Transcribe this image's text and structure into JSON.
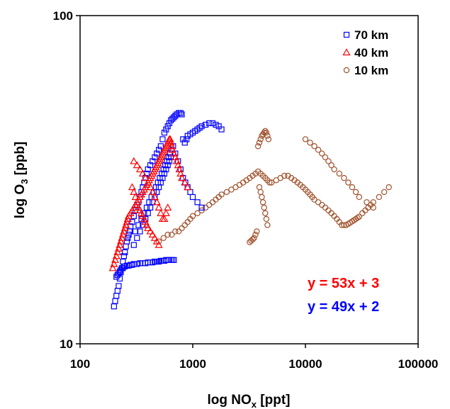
{
  "chart_data": {
    "type": "scatter",
    "title": "",
    "xlabel": "log NO",
    "xlabel_sub": "x",
    "xlabel_unit": " [ppt]",
    "ylabel": "log O",
    "ylabel_sub": "3",
    "ylabel_unit": " [ppb]",
    "xscale": "log",
    "yscale": "log",
    "xlim": [
      100,
      100000
    ],
    "ylim": [
      10,
      100
    ],
    "x_ticks": [
      100,
      1000,
      10000,
      100000
    ],
    "x_tick_labels": [
      "100",
      "1000",
      "10000",
      "100000"
    ],
    "y_ticks": [
      10,
      100
    ],
    "y_tick_labels": [
      "10",
      "100"
    ],
    "grid": false,
    "legend_position": "top-right",
    "series": [
      {
        "name": "70 km",
        "marker": "square",
        "color": "#0000ff",
        "x": [
          200,
          205,
          210,
          215,
          220,
          225,
          230,
          235,
          240,
          245,
          250,
          255,
          260,
          265,
          270,
          275,
          280,
          290,
          300,
          310,
          320,
          330,
          340,
          350,
          360,
          370,
          380,
          390,
          400,
          420,
          440,
          460,
          480,
          500,
          520,
          540,
          560,
          580,
          600,
          620,
          640,
          660,
          680,
          700,
          720,
          750,
          780,
          800,
          820,
          850,
          880,
          900,
          950,
          1000,
          1050,
          1100,
          1150,
          1200,
          1300,
          1400,
          1500,
          1600,
          1700,
          1800,
          310,
          330,
          350,
          370,
          390,
          410,
          430,
          450,
          470,
          490,
          510,
          530,
          550,
          570,
          590,
          610,
          630,
          650,
          670,
          700,
          740,
          780,
          820,
          860,
          900,
          950,
          1000,
          1100,
          1200,
          300,
          320,
          340,
          360,
          380,
          400,
          420,
          440,
          460,
          480,
          500,
          520,
          540,
          560,
          580,
          600,
          620,
          640,
          210,
          215,
          220,
          225,
          230,
          235,
          240,
          245,
          250,
          260,
          270,
          280,
          290,
          300,
          320,
          340,
          360,
          380,
          400,
          420,
          440,
          460,
          480,
          500,
          520,
          540,
          560,
          580,
          600,
          620,
          640,
          660,
          680
        ],
        "y": [
          13,
          13.5,
          14,
          14.5,
          15,
          15.8,
          16.5,
          17,
          17.8,
          18.5,
          19,
          19.8,
          20.5,
          21,
          21.5,
          22,
          22.8,
          23.5,
          24.5,
          25.5,
          26.5,
          27,
          28,
          29,
          30,
          31,
          32,
          33,
          34,
          35,
          36,
          37,
          38,
          39,
          40,
          42,
          44,
          45,
          46,
          47,
          48,
          48.5,
          49,
          49.5,
          50,
          50.5,
          50.5,
          50,
          42,
          41,
          42,
          43,
          43.5,
          44,
          44.5,
          45,
          45.5,
          46,
          46.5,
          47,
          47,
          46.5,
          46,
          45,
          22,
          23,
          24,
          25,
          26,
          27,
          28,
          29,
          30,
          31,
          32,
          33,
          34,
          35,
          36,
          37,
          38,
          39,
          40,
          38,
          36,
          34,
          32,
          31,
          30,
          29,
          28,
          27,
          26,
          20,
          21,
          22,
          23,
          24,
          25,
          26,
          27,
          28,
          29,
          30,
          31,
          32,
          33,
          34,
          35,
          36,
          37,
          16,
          16.2,
          16.4,
          16.6,
          16.8,
          17,
          17,
          17.2,
          17.2,
          17.3,
          17.3,
          17.4,
          17.4,
          17.5,
          17.5,
          17.6,
          17.6,
          17.6,
          17.7,
          17.7,
          17.7,
          17.8,
          17.8,
          17.8,
          17.9,
          17.9,
          17.9,
          18,
          18,
          18,
          18,
          18,
          18
        ]
      },
      {
        "name": "40 km",
        "marker": "triangle",
        "color": "#ff0000",
        "x": [
          195,
          200,
          205,
          210,
          215,
          220,
          225,
          230,
          235,
          240,
          245,
          250,
          255,
          260,
          265,
          270,
          280,
          290,
          300,
          310,
          320,
          330,
          340,
          350,
          360,
          370,
          380,
          390,
          400,
          410,
          420,
          430,
          440,
          450,
          460,
          470,
          480,
          490,
          500,
          510,
          520,
          530,
          540,
          550,
          560,
          570,
          580,
          590,
          600,
          610,
          620,
          630,
          640,
          650,
          660,
          680,
          700,
          720,
          740,
          760,
          780,
          800,
          850,
          900,
          300,
          320,
          340,
          360,
          380,
          400,
          420,
          440,
          460,
          480,
          500,
          520,
          540,
          560,
          580,
          600,
          290,
          300,
          310,
          320,
          330,
          340,
          350,
          360,
          370,
          380,
          390,
          400,
          420,
          440,
          460,
          480,
          500
        ],
        "y": [
          17,
          17.5,
          18,
          18.5,
          19,
          19.5,
          20,
          20.5,
          21,
          21.5,
          22,
          22.5,
          23,
          23.5,
          24,
          24.5,
          25,
          25.5,
          26,
          26.5,
          27,
          27.5,
          28,
          28.5,
          29,
          29.5,
          30,
          30.5,
          31,
          31.5,
          32,
          32.5,
          33,
          33.5,
          34,
          34.5,
          35,
          35.5,
          36,
          36.5,
          37,
          37.5,
          38,
          38.5,
          39,
          39.5,
          40,
          40.5,
          41,
          41.5,
          42,
          42,
          41,
          40,
          39,
          38,
          37,
          36,
          35,
          34,
          33,
          32,
          31,
          30,
          36,
          35,
          34,
          33,
          32,
          31,
          30,
          29,
          28,
          27,
          26,
          25,
          24,
          24,
          25,
          26,
          30,
          29,
          28,
          27,
          26,
          25.5,
          25,
          24.5,
          24,
          23.5,
          23,
          22.5,
          22,
          21.5,
          21,
          20.5,
          20
        ]
      },
      {
        "name": "10 km",
        "marker": "circle",
        "color": "#a0522d",
        "x": [
          500,
          550,
          600,
          650,
          700,
          750,
          800,
          850,
          900,
          950,
          1000,
          1100,
          1200,
          1300,
          1400,
          1500,
          1600,
          1700,
          1800,
          2000,
          2200,
          2400,
          2600,
          2800,
          3000,
          3200,
          3400,
          3600,
          3800,
          4000,
          4200,
          4400,
          4600,
          4800,
          5000,
          5500,
          6000,
          6500,
          7000,
          7500,
          8000,
          8500,
          9000,
          9500,
          10000,
          10500,
          11000,
          11500,
          12000,
          13000,
          14000,
          15000,
          16000,
          17000,
          18000,
          19000,
          20000,
          21000,
          22000,
          23000,
          24000,
          25000,
          26000,
          27000,
          28000,
          29000,
          30000,
          32000,
          34000,
          36000,
          38000,
          40000,
          45000,
          50000,
          55000,
          3800,
          3900,
          4000,
          4100,
          4200,
          4300,
          4400,
          4500,
          4600,
          4700,
          3900,
          4000,
          4100,
          4200,
          4300,
          4400,
          4500,
          4600,
          3700,
          3600,
          3500,
          3400,
          3300,
          3200,
          10000,
          11000,
          12000,
          13000,
          14000,
          15000,
          16000,
          17000,
          18000,
          20000,
          22000,
          24000,
          26000,
          28000,
          30000,
          35000,
          40000
        ],
        "y": [
          20.5,
          21,
          21.5,
          21.5,
          22,
          22,
          22.5,
          23,
          23.5,
          24,
          24.5,
          25,
          25.5,
          26,
          26.5,
          27,
          27.5,
          28,
          28.5,
          29,
          29.5,
          30,
          30.5,
          31,
          31.5,
          32,
          32.5,
          33,
          33.5,
          33,
          32.5,
          32,
          31.5,
          31,
          31,
          31.5,
          32,
          32.5,
          32.5,
          32,
          31.5,
          31,
          30.5,
          30,
          29.5,
          29,
          28.5,
          28,
          27.5,
          27,
          26.5,
          26,
          25.5,
          25,
          24.5,
          24,
          23.5,
          23,
          23,
          23,
          23.2,
          23.4,
          23.6,
          23.8,
          24,
          24.2,
          24.4,
          25,
          25.5,
          26,
          26.5,
          27,
          28,
          29,
          30,
          40,
          41,
          42,
          43,
          43.5,
          44,
          44.5,
          44,
          43,
          42,
          30,
          29,
          28,
          27,
          26,
          25,
          24,
          23,
          22,
          21.5,
          21,
          20.8,
          20.6,
          20.4,
          42,
          41,
          40,
          39,
          38,
          37,
          36,
          35,
          34,
          33,
          32,
          31,
          30,
          29,
          28,
          27,
          26
        ]
      }
    ],
    "annotations": [
      {
        "text": "y = 53x + 3",
        "color": "#ff0000"
      },
      {
        "text": "y = 49x + 2",
        "color": "#0000ff"
      }
    ]
  }
}
